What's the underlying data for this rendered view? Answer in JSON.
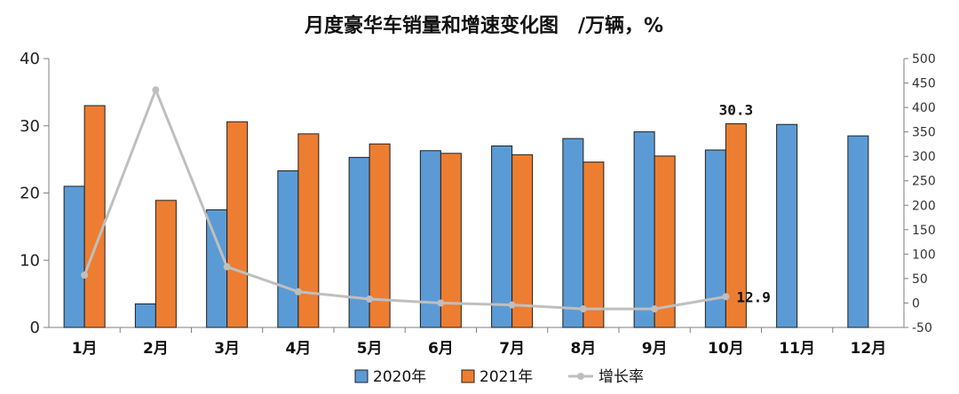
{
  "chart_data": {
    "type": "bar",
    "title": "月度豪华车销量和增速变化图　/万辆，%",
    "categories": [
      "1月",
      "2月",
      "3月",
      "4月",
      "5月",
      "6月",
      "7月",
      "8月",
      "9月",
      "10月",
      "11月",
      "12月"
    ],
    "series": [
      {
        "name": "2020年",
        "type": "bar",
        "axis": "left",
        "color": "#5B9BD5",
        "values": [
          21.0,
          3.5,
          17.5,
          23.3,
          25.3,
          26.3,
          27.0,
          28.1,
          29.1,
          26.4,
          30.2,
          28.5
        ]
      },
      {
        "name": "2021年",
        "type": "bar",
        "axis": "left",
        "color": "#ED7D31",
        "values": [
          33.0,
          18.9,
          30.6,
          28.8,
          27.3,
          25.9,
          25.7,
          24.6,
          25.5,
          30.3,
          null,
          null
        ]
      },
      {
        "name": "增长率",
        "type": "line",
        "axis": "right",
        "color": "#BFBFBF",
        "values": [
          57,
          436,
          74,
          23,
          8,
          0,
          -4,
          -12,
          -12,
          12.9,
          null,
          null
        ]
      }
    ],
    "ylim_left": [
      0,
      40
    ],
    "yticks_left": [
      "0",
      "10",
      "20",
      "30",
      "40"
    ],
    "ylim_right": [
      -50,
      500
    ],
    "yticks_right": [
      "-50",
      "0",
      "50",
      "100",
      "150",
      "200",
      "250",
      "300",
      "350",
      "400",
      "450",
      "500"
    ],
    "annotations": [
      {
        "series": "2021年",
        "category": "10月",
        "text": "30.3"
      },
      {
        "series": "增长率",
        "category": "10月",
        "text": "12.9"
      }
    ],
    "legend_position": "bottom",
    "grid": false
  }
}
